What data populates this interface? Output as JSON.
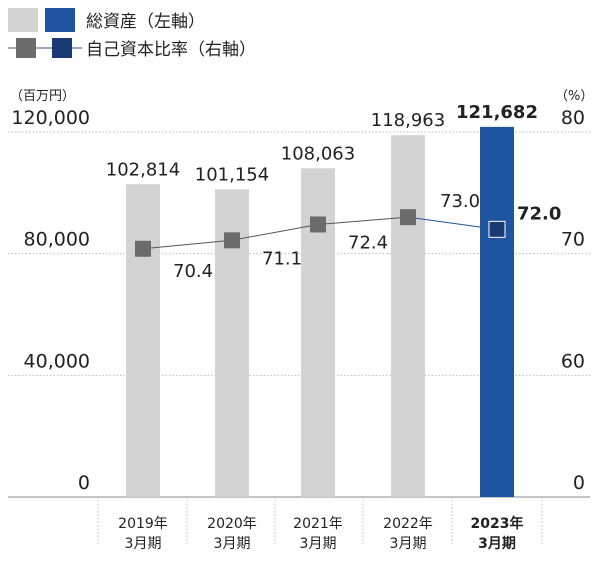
{
  "legend": {
    "total_assets": "総資産（左軸）",
    "equity_ratio": "自己資本比率（右軸）"
  },
  "left_unit": "（百万円）",
  "right_unit": "（%）",
  "colors": {
    "bar_past": "#d3d3d3",
    "bar_current": "#1f55a0",
    "marker_past": "#6b6b6b",
    "marker_current": "#1a3a73",
    "line_past": "#555555",
    "line_current": "#1f55a0",
    "grid": "#bbbbbb",
    "axis": "#888888"
  },
  "chart_data": {
    "type": "bar",
    "categories": [
      [
        "2019年",
        "3月期"
      ],
      [
        "2020年",
        "3月期"
      ],
      [
        "2021年",
        "3月期"
      ],
      [
        "2022年",
        "3月期"
      ],
      [
        "2023年",
        "3月期"
      ]
    ],
    "highlight_index": 4,
    "series": [
      {
        "name": "総資産（左軸）",
        "type": "bar",
        "axis": "left",
        "values": [
          102814,
          101154,
          108063,
          118963,
          121682
        ],
        "labels": [
          "102,814",
          "101,154",
          "108,063",
          "118,963",
          "121,682"
        ]
      },
      {
        "name": "自己資本比率（右軸）",
        "type": "line",
        "axis": "right",
        "values": [
          70.4,
          71.1,
          72.4,
          73.0,
          72.0
        ],
        "labels": [
          "70.4",
          "71.1",
          "72.4",
          "73.0",
          "72.0"
        ]
      }
    ],
    "left_axis": {
      "ylim": [
        0,
        120000
      ],
      "ticks": [
        0,
        40000,
        80000,
        120000
      ],
      "tick_labels": [
        "0",
        "40,000",
        "80,000",
        "120,000"
      ]
    },
    "right_axis": {
      "ylim": [
        0,
        80
      ],
      "ticks": [
        0,
        60,
        70,
        80
      ],
      "tick_labels": [
        "0",
        "60",
        "70",
        "80"
      ]
    },
    "grid": true
  }
}
